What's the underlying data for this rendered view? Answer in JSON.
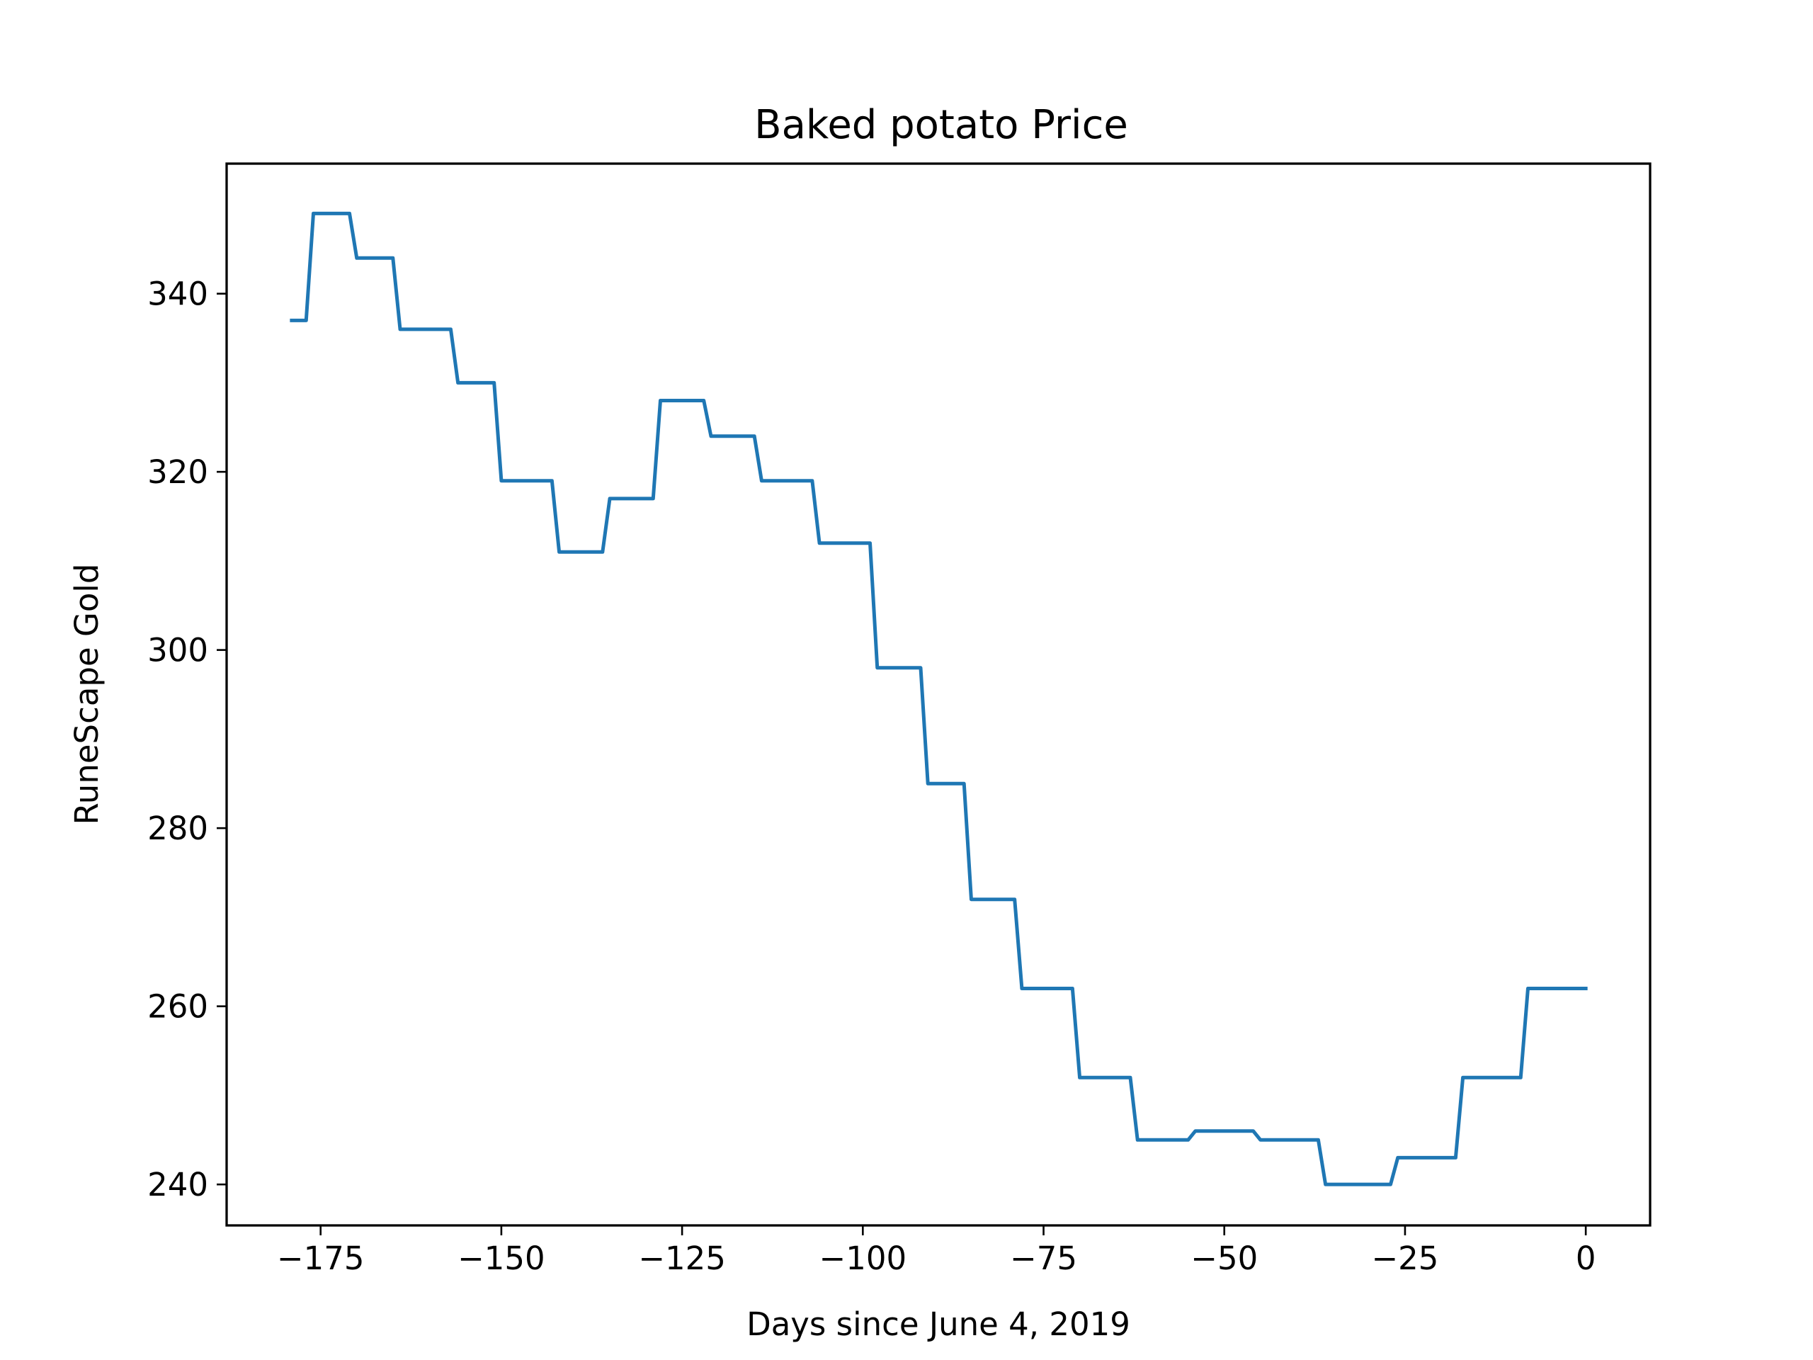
{
  "chart_data": {
    "type": "line",
    "title": "Baked potato Price",
    "xlabel": "Days since June 4, 2019",
    "ylabel": "RuneScape Gold",
    "xlim": [
      -188,
      8.9
    ],
    "ylim": [
      235.4,
      354.6
    ],
    "xticks": [
      -175,
      -150,
      -125,
      -100,
      -75,
      -50,
      -25,
      0
    ],
    "xtick_labels": [
      "−175",
      "−150",
      "−125",
      "−100",
      "−75",
      "−50",
      "−25",
      "0"
    ],
    "yticks": [
      240,
      260,
      280,
      300,
      320,
      340
    ],
    "ytick_labels": [
      "240",
      "260",
      "280",
      "300",
      "320",
      "340"
    ],
    "grid": false,
    "legend": false,
    "series": [
      {
        "color": "#1f77b4",
        "x": [
          -179,
          -177,
          -176,
          -171,
          -170,
          -165,
          -164,
          -157,
          -156,
          -151,
          -150,
          -143,
          -142,
          -136,
          -135,
          -129,
          -128,
          -122,
          -121,
          -115,
          -114,
          -107,
          -106,
          -99,
          -98,
          -92,
          -91,
          -86,
          -85,
          -79,
          -78,
          -71,
          -70,
          -63,
          -62,
          -55,
          -54,
          -46,
          -45,
          -37,
          -36,
          -27,
          -26,
          -18,
          -17,
          -9,
          -8,
          0
        ],
        "y": [
          337,
          337,
          349,
          349,
          344,
          344,
          336,
          336,
          330,
          330,
          319,
          319,
          311,
          311,
          317,
          317,
          328,
          328,
          324,
          324,
          319,
          319,
          312,
          312,
          298,
          298,
          285,
          285,
          272,
          272,
          262,
          262,
          252,
          252,
          245,
          245,
          246,
          246,
          245,
          245,
          240,
          240,
          243,
          243,
          252,
          252,
          262,
          262
        ]
      }
    ]
  }
}
